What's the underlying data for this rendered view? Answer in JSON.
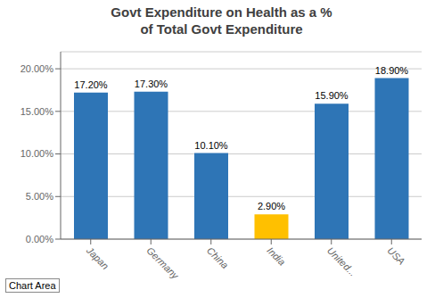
{
  "chart_data": {
    "type": "bar",
    "title": "Govt Expenditure on Health as a %\nof Total Govt Expenditure",
    "categories": [
      "Japan",
      "Germany",
      "China",
      "India",
      "United...",
      "USA"
    ],
    "values": [
      17.2,
      17.3,
      10.1,
      2.9,
      15.9,
      18.9
    ],
    "value_labels": [
      "17.20%",
      "17.30%",
      "10.10%",
      "2.90%",
      "15.90%",
      "18.90%"
    ],
    "colors": [
      "#2E75B6",
      "#2E75B6",
      "#2E75B6",
      "#FFC000",
      "#2E75B6",
      "#2E75B6"
    ],
    "data_labels": true,
    "ylim": [
      0,
      22
    ],
    "yticks": [
      {
        "value": 0,
        "label": "0.00%"
      },
      {
        "value": 5,
        "label": "5.00%"
      },
      {
        "value": 10,
        "label": "10.00%"
      },
      {
        "value": 15,
        "label": "15.00%"
      },
      {
        "value": 20,
        "label": "20.00%"
      }
    ],
    "grid": true,
    "annotations": [
      "Chart Area"
    ]
  }
}
